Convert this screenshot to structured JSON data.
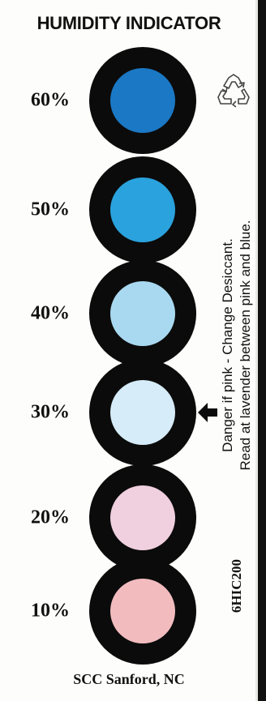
{
  "title": "HUMIDITY INDICATOR",
  "indicators": [
    {
      "label": "60%",
      "color": "#1b78c4"
    },
    {
      "label": "50%",
      "color": "#2aa2dd"
    },
    {
      "label": "40%",
      "color": "#a9d9f1"
    },
    {
      "label": "30%",
      "color": "#d6ecf8"
    },
    {
      "label": "20%",
      "color": "#f0cfdf"
    },
    {
      "label": "10%",
      "color": "#f2bcbf"
    }
  ],
  "instructions": {
    "line1": "Danger if pink - Change Desiccant.",
    "line2": "Read at lavender between pink and blue."
  },
  "model": "6HIC200",
  "footer": "SCC Sanford, NC",
  "icons": {
    "recycle": "recycle-icon",
    "arrow": "arrow-left-icon"
  }
}
